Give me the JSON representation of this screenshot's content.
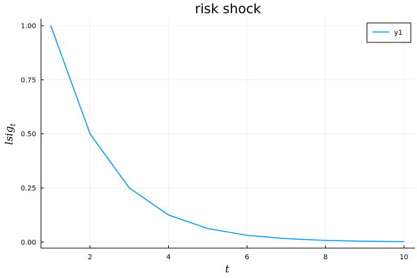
{
  "chart_data": {
    "type": "line",
    "title": "risk shock",
    "xlabel": "t",
    "ylabel_main": "lsig",
    "ylabel_sub": "t",
    "xlim": [
      0.75,
      10.28
    ],
    "ylim": [
      -0.028,
      1.032
    ],
    "xticks": [
      2,
      4,
      6,
      8,
      10
    ],
    "xtick_labels": [
      "2",
      "4",
      "6",
      "8",
      "10"
    ],
    "yticks": [
      0,
      0.25,
      0.5,
      0.75,
      1.0
    ],
    "ytick_labels": [
      "0.00",
      "0.25",
      "0.50",
      "0.75",
      "1.00"
    ],
    "grid": true,
    "legend_position": "top-right",
    "series": [
      {
        "name": "y1",
        "color": "#009af9",
        "x": [
          1,
          2,
          3,
          4,
          5,
          6,
          7,
          8,
          9,
          10
        ],
        "y": [
          1.0,
          0.5,
          0.25,
          0.125,
          0.0625,
          0.03125,
          0.015625,
          0.0078125,
          0.00390625,
          0.001953125
        ]
      }
    ]
  }
}
